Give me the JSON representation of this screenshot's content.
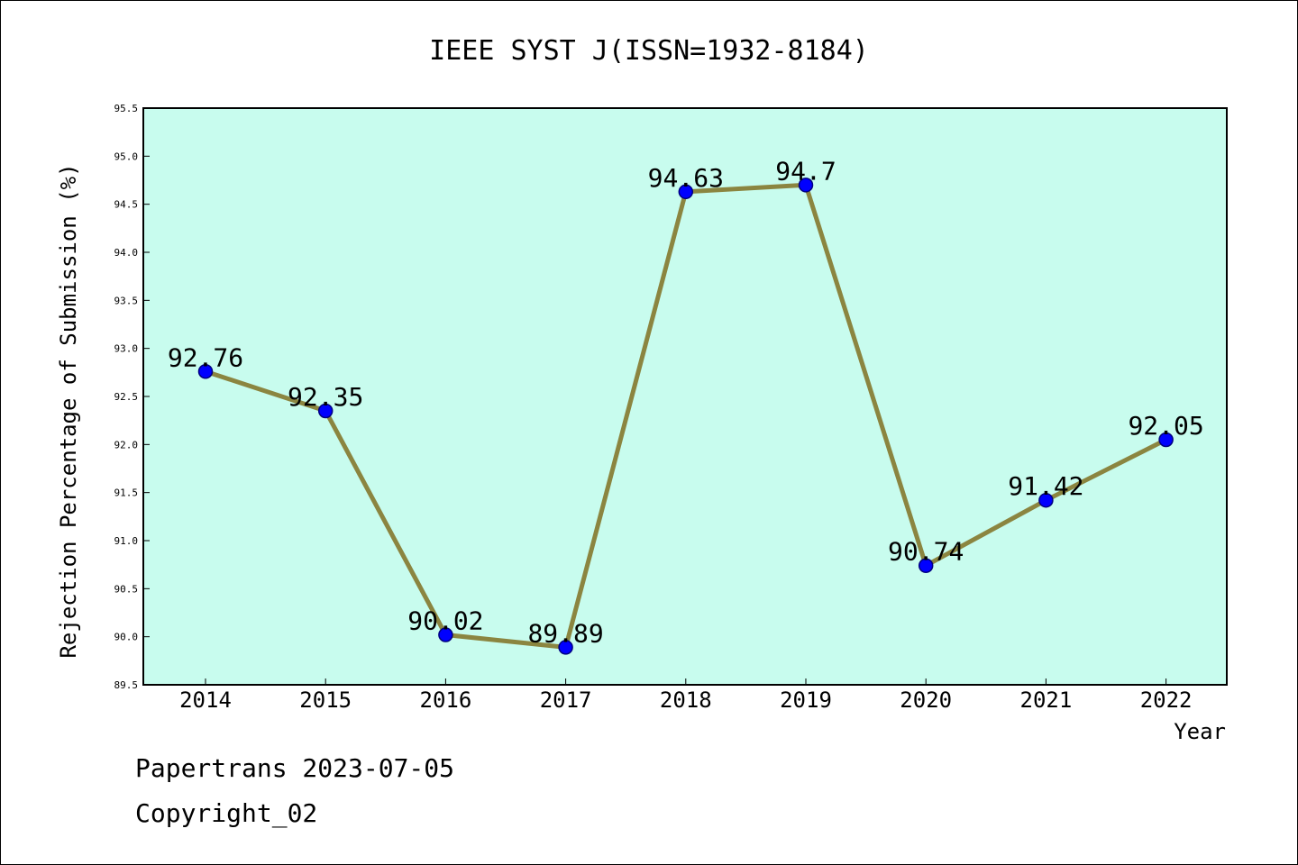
{
  "chart_data": {
    "type": "line",
    "title": "IEEE SYST J(ISSN=1932-8184)",
    "xlabel": "Year",
    "ylabel": "Rejection Percentage of Submission (%)",
    "categories": [
      "2014",
      "2015",
      "2016",
      "2017",
      "2018",
      "2019",
      "2020",
      "2021",
      "2022"
    ],
    "values": [
      92.76,
      92.35,
      90.02,
      89.89,
      94.63,
      94.7,
      90.74,
      91.42,
      92.05
    ],
    "data_labels": [
      "92.76",
      "92.35",
      "90.02",
      "89.89",
      "94.63",
      "94.7",
      "90.74",
      "91.42",
      "92.05"
    ],
    "ylim": [
      89.5,
      95.5
    ],
    "yticks": [
      "89.5",
      "90.0",
      "90.5",
      "91.0",
      "91.5",
      "92.0",
      "92.5",
      "93.0",
      "93.5",
      "94.0",
      "94.5",
      "95.0",
      "95.5"
    ],
    "grid": false,
    "legend": false,
    "colors": {
      "plot_background": "#c8fcee",
      "line": "#8b8540",
      "marker": "#0000ff",
      "marker_edge": "#000080"
    }
  },
  "footer": {
    "line1": "Papertrans 2023-07-05",
    "line2": "Copyright_02"
  }
}
